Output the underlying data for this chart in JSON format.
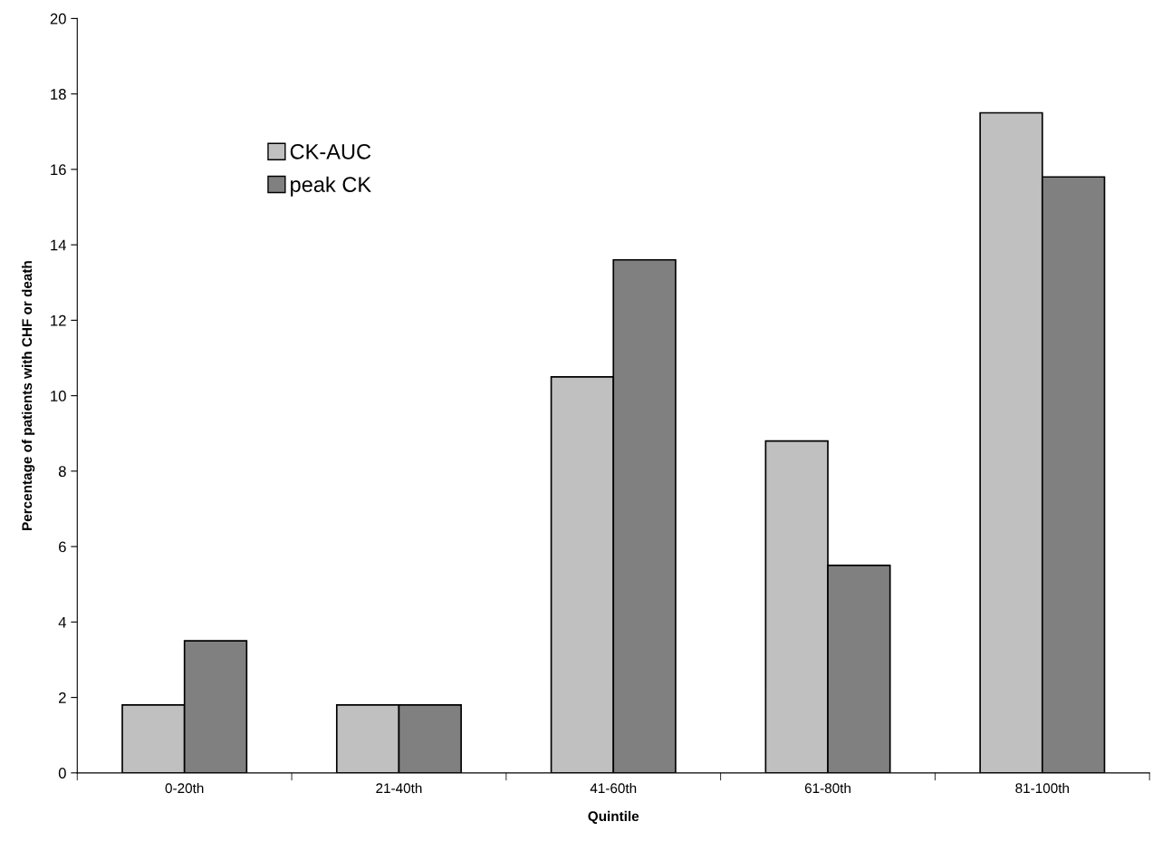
{
  "chart_data": {
    "type": "bar",
    "xlabel": "Quintile",
    "ylabel": "Percentage of patients with CHF or death",
    "categories": [
      "0-20th",
      "21-40th",
      "41-60th",
      "61-80th",
      "81-100th"
    ],
    "series": [
      {
        "name": "CK-AUC",
        "color": "#c0c0c0",
        "values": [
          1.8,
          1.8,
          10.5,
          8.8,
          17.5
        ]
      },
      {
        "name": "peak CK",
        "color": "#808080",
        "values": [
          3.5,
          1.8,
          13.6,
          5.5,
          15.8
        ]
      }
    ],
    "ylim": [
      0,
      20
    ],
    "yticks": [
      0,
      2,
      4,
      6,
      8,
      10,
      12,
      14,
      16,
      18,
      20
    ],
    "grid": false,
    "legend": "top left"
  }
}
